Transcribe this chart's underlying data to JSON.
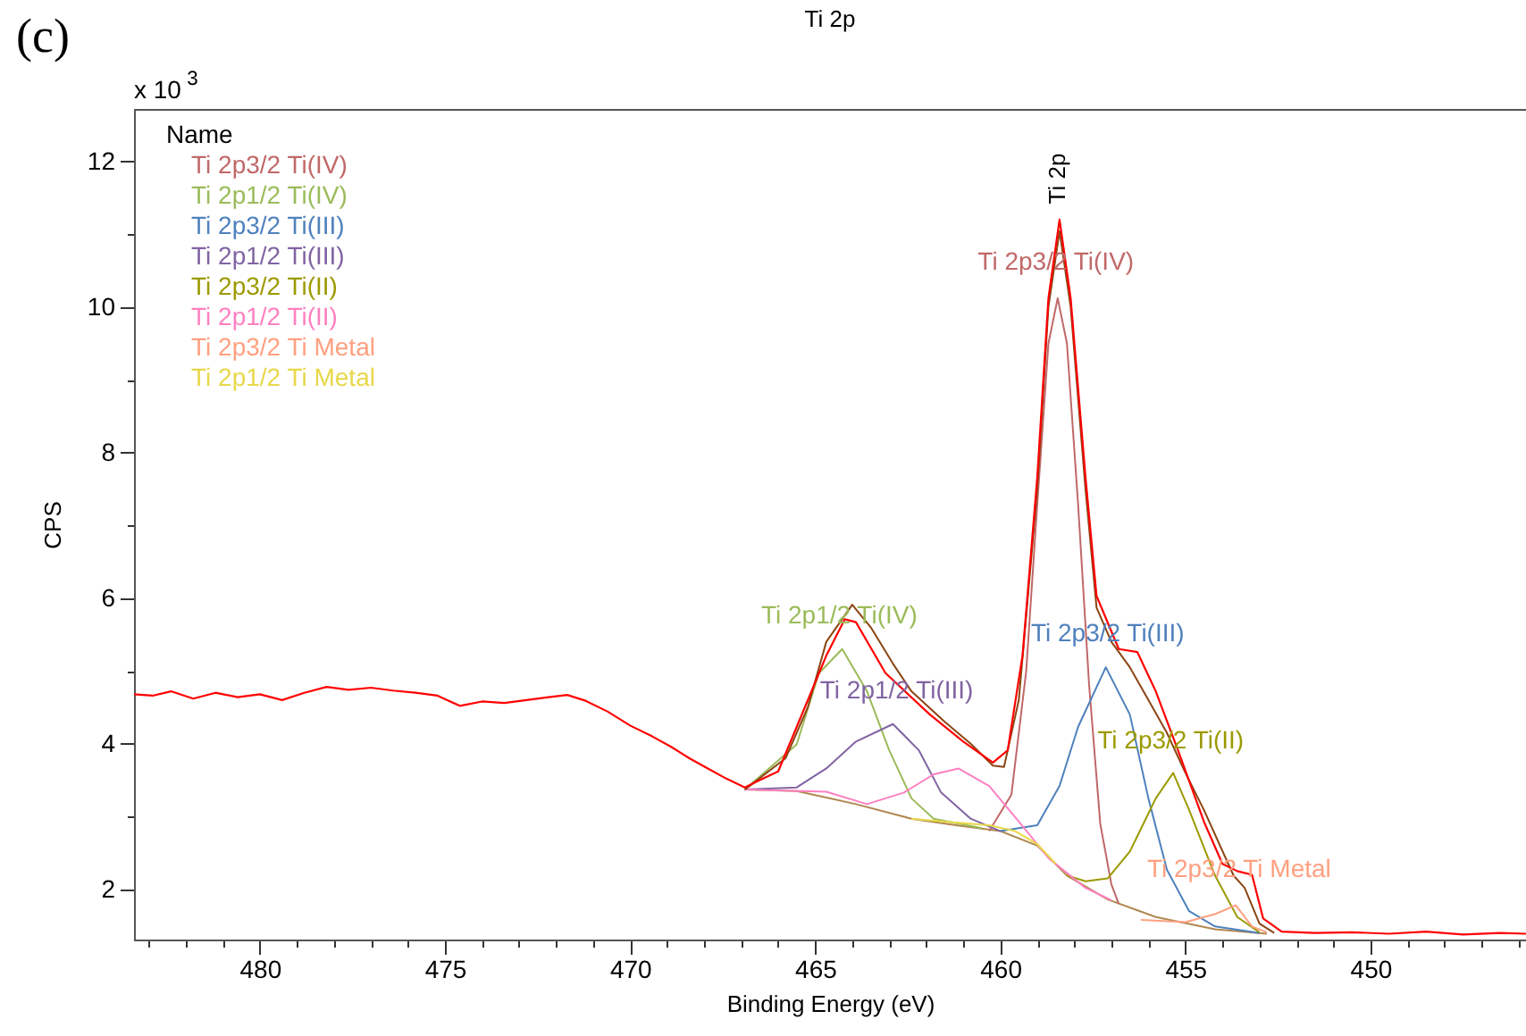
{
  "chart_data": {
    "type": "line",
    "title": "Ti 2p",
    "xlabel": "Binding Energy (eV)",
    "ylabel": "CPS",
    "legend_title": "Name",
    "legend": "top left",
    "xlim": [
      483.4,
      445.8
    ],
    "ylim": [
      1.31,
      12.72
    ],
    "xticks": [
      {
        "value": 483,
        "label": null
      },
      {
        "value": 482,
        "label": null
      },
      {
        "value": 481,
        "label": null
      },
      480,
      {
        "value": 479,
        "label": null
      },
      {
        "value": 478,
        "label": null
      },
      {
        "value": 477,
        "label": null
      },
      {
        "value": 476,
        "label": null
      },
      475,
      {
        "value": 474,
        "label": null
      },
      {
        "value": 473,
        "label": null
      },
      {
        "value": 472,
        "label": null
      },
      {
        "value": 471,
        "label": null
      },
      470,
      {
        "value": 469,
        "label": null
      },
      {
        "value": 468,
        "label": null
      },
      {
        "value": 467,
        "label": null
      },
      {
        "value": 466,
        "label": null
      },
      465,
      {
        "value": 464,
        "label": null
      },
      {
        "value": 463,
        "label": null
      },
      {
        "value": 462,
        "label": null
      },
      {
        "value": 461,
        "label": null
      },
      460,
      {
        "value": 459,
        "label": null
      },
      {
        "value": 458,
        "label": null
      },
      {
        "value": 457,
        "label": null
      },
      {
        "value": 456,
        "label": null
      },
      455,
      {
        "value": 454,
        "label": null
      },
      {
        "value": 453,
        "label": null
      },
      {
        "value": 452,
        "label": null
      },
      {
        "value": 451,
        "label": null
      },
      450,
      {
        "value": 449,
        "label": null
      },
      {
        "value": 448,
        "label": null
      },
      {
        "value": 447,
        "label": null
      },
      {
        "value": 446,
        "label": null
      }
    ],
    "yticks": [
      2,
      {
        "value": 3,
        "label": null
      },
      4,
      {
        "value": 5,
        "label": null
      },
      6,
      {
        "value": 7,
        "label": null
      },
      8,
      {
        "value": 9,
        "label": null
      },
      10,
      {
        "value": 11,
        "label": null
      },
      12
    ],
    "annotations": [
      "(c)",
      "x 10$^{3}$",
      "Ti 2p",
      {
        "text": "Ti 2p3/2 Ti(IV)",
        "x": 458.5,
        "y": 10.61
      },
      {
        "text": "Ti 2p1/2 Ti(IV)",
        "x": 464.35,
        "y": 5.75
      },
      {
        "text": "Ti 2p1/2 Ti(III)",
        "x": 462.8,
        "y": 4.72
      },
      {
        "text": "Ti 2p3/2 Ti(III)",
        "x": 457.1,
        "y": 5.5
      },
      {
        "text": "Ti 2p3/2 Ti(II)",
        "x": 455.4,
        "y": 4.03
      },
      {
        "text": "Ti 2p3/2 Ti Metal",
        "x": 453.55,
        "y": 2.27
      }
    ],
    "series": [
      {
        "color": "#b08850",
        "x": [
          466.9,
          465.5,
          464.7,
          463.9,
          462.4,
          461.2,
          460.0,
          459.0,
          458.2,
          457.1,
          455.8,
          454.2,
          452.8
        ],
        "values": [
          3.37,
          3.35,
          3.26,
          3.17,
          2.97,
          2.88,
          2.8,
          2.6,
          2.19,
          1.86,
          1.62,
          1.45,
          1.39
        ]
      },
      {
        "name": "Ti 2p3/2 Ti(IV)",
        "color": "#c06868",
        "x": [
          460.3,
          459.7,
          459.3,
          459.0,
          458.7,
          458.45,
          458.2,
          457.9,
          457.6,
          457.3,
          457.0,
          456.8
        ],
        "values": [
          2.8,
          3.3,
          5.0,
          7.3,
          9.5,
          10.12,
          9.5,
          7.3,
          4.8,
          2.9,
          2.07,
          1.8
        ]
      },
      {
        "name": "Ti 2p1/2 Ti(IV)",
        "color": "#9bbb59",
        "x": [
          466.9,
          465.5,
          464.9,
          464.27,
          463.6,
          463.0,
          462.4,
          461.8,
          460.5
        ],
        "values": [
          3.37,
          3.99,
          4.97,
          5.3,
          4.72,
          3.91,
          3.25,
          2.97,
          2.84
        ]
      },
      {
        "name": "Ti 2p3/2 Ti(III)",
        "color": "#4f81bd",
        "x": [
          460.0,
          459.0,
          458.4,
          457.9,
          457.15,
          456.5,
          456.0,
          455.5,
          454.9,
          454.2,
          453.0
        ],
        "values": [
          2.8,
          2.88,
          3.42,
          4.23,
          5.05,
          4.4,
          3.25,
          2.27,
          1.7,
          1.49,
          1.4
        ]
      },
      {
        "name": "Ti 2p1/2 Ti(III)",
        "color": "#8064a2",
        "x": [
          466.9,
          465.5,
          464.7,
          463.9,
          462.9,
          462.2,
          461.6,
          460.8,
          460.0
        ],
        "values": [
          3.37,
          3.4,
          3.66,
          4.03,
          4.27,
          3.91,
          3.33,
          2.97,
          2.8
        ]
      },
      {
        "name": "Ti 2p3/2 Ti(II)",
        "color": "#9c9a00",
        "x": [
          458.2,
          457.7,
          457.1,
          456.5,
          455.8,
          455.33,
          454.9,
          454.2,
          453.6,
          453.0
        ],
        "values": [
          2.19,
          2.11,
          2.15,
          2.52,
          3.25,
          3.6,
          3.09,
          2.19,
          1.62,
          1.41
        ]
      },
      {
        "name": "Ti 2p1/2 Ti(II)",
        "color": "#ff80c0",
        "x": [
          466.9,
          464.7,
          463.6,
          462.6,
          461.8,
          461.13,
          460.3,
          459.5,
          458.7,
          457.7,
          457.0
        ],
        "values": [
          3.37,
          3.34,
          3.17,
          3.33,
          3.58,
          3.66,
          3.42,
          2.93,
          2.43,
          2.02,
          1.85
        ]
      },
      {
        "name": "Ti 2p3/2 Ti Metal",
        "color": "#ffa080",
        "x": [
          456.2,
          455.0,
          454.2,
          453.64,
          453.2,
          452.8
        ],
        "values": [
          1.58,
          1.55,
          1.66,
          1.78,
          1.49,
          1.41
        ]
      },
      {
        "name": "Ti 2p1/2 Ti Metal",
        "color": "#e8d84a",
        "x": [
          462.4,
          461.3,
          460.3,
          459.6,
          459.0,
          458.5
        ],
        "values": [
          2.97,
          2.92,
          2.88,
          2.8,
          2.62,
          2.35
        ]
      },
      {
        "color": "#8b4513",
        "x": [
          466.9,
          465.8,
          465.2,
          464.7,
          464.0,
          463.5,
          462.9,
          462.4,
          461.5,
          460.8,
          460.2,
          459.9,
          459.5,
          459.0,
          458.7,
          458.4,
          458.1,
          457.7,
          457.4,
          457.0,
          456.5,
          456.0,
          455.5,
          455.0,
          454.5,
          453.7,
          453.4,
          453.0,
          452.6
        ],
        "values": [
          3.37,
          3.8,
          4.5,
          5.4,
          5.91,
          5.6,
          5.1,
          4.72,
          4.3,
          4.0,
          3.7,
          3.68,
          4.6,
          7.5,
          10.0,
          11.04,
          10.0,
          7.5,
          5.87,
          5.4,
          5.05,
          4.6,
          4.15,
          3.6,
          3.09,
          2.19,
          2.02,
          1.53,
          1.4
        ]
      },
      {
        "color": "#ff0000",
        "x": [
          483.4,
          482.9,
          482.4,
          481.8,
          481.2,
          480.6,
          480.0,
          479.4,
          478.8,
          478.2,
          477.6,
          477.0,
          476.4,
          475.8,
          475.2,
          474.6,
          474.0,
          473.4,
          472.8,
          472.2,
          471.7,
          471.2,
          470.6,
          470.0,
          469.4,
          468.9,
          468.4,
          467.9,
          467.4,
          466.9,
          466.5,
          466.0,
          465.5,
          464.7,
          464.2,
          463.9,
          463.1,
          461.9,
          461.0,
          460.2,
          459.8,
          459.4,
          459.0,
          458.7,
          458.4,
          458.1,
          457.7,
          457.4,
          456.8,
          456.3,
          455.8,
          455.2,
          454.5,
          454.0,
          453.6,
          453.2,
          452.9,
          452.4,
          451.5,
          450.5,
          449.5,
          448.5,
          447.5,
          446.5,
          445.8
        ],
        "values": [
          4.68,
          4.66,
          4.72,
          4.62,
          4.7,
          4.64,
          4.68,
          4.6,
          4.7,
          4.78,
          4.74,
          4.77,
          4.73,
          4.7,
          4.66,
          4.52,
          4.58,
          4.56,
          4.6,
          4.64,
          4.67,
          4.59,
          4.44,
          4.25,
          4.1,
          3.96,
          3.8,
          3.66,
          3.52,
          3.4,
          3.5,
          3.62,
          4.23,
          5.21,
          5.71,
          5.67,
          4.97,
          4.4,
          4.03,
          3.74,
          3.91,
          5.21,
          7.67,
          10.12,
          11.2,
          10.12,
          7.67,
          6.03,
          5.3,
          5.26,
          4.72,
          3.91,
          2.93,
          2.35,
          2.25,
          2.2,
          1.6,
          1.42,
          1.4,
          1.41,
          1.39,
          1.42,
          1.38,
          1.4,
          1.39
        ]
      }
    ]
  }
}
